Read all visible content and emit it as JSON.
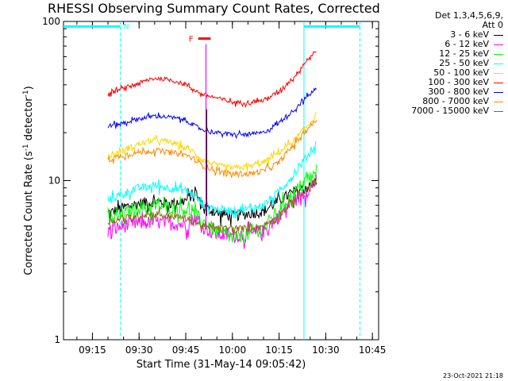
{
  "title": "RHESSI Observing Summary Count Rates, Corrected",
  "legend": {
    "header_line1": "Det 1,3,4,5,6,9,",
    "header_line2": "Att 0",
    "items": [
      {
        "label": "3 - 6 keV",
        "color": "#000000"
      },
      {
        "label": "6 - 12 keV",
        "color": "#ff00ff"
      },
      {
        "label": "12 - 25 keV",
        "color": "#00ff00"
      },
      {
        "label": "25 - 50 keV",
        "color": "#00ffff"
      },
      {
        "label": "50 - 100 keV",
        "color": "#ffd700"
      },
      {
        "label": "100 - 300 keV",
        "color": "#ff0000"
      },
      {
        "label": "300 - 800 keV",
        "color": "#0000ff"
      },
      {
        "label": "800 - 7000 keV",
        "color": "#ff8800"
      },
      {
        "label": "7000 - 15000 keV",
        "color": "#8b6914"
      }
    ]
  },
  "footer_date": "23-Oct-2021 21:18",
  "chart_data": {
    "type": "line",
    "title": "RHESSI Observing Summary Count Rates, Corrected",
    "xlabel": "Start Time (31-May-14 09:05:42)",
    "ylabel": "Corrected Count Rate (s⁻¹ detector⁻¹)",
    "ylabel_text": "Corrected Count Rate (s",
    "ylabel_sup1": "-1",
    "ylabel_mid": " detector",
    "ylabel_sup2": "-1",
    "ylabel_end": ")",
    "yscale": "log",
    "ylim": [
      1,
      100
    ],
    "yticks": [
      1,
      10,
      100
    ],
    "yticklabels": [
      "1",
      "10",
      "100"
    ],
    "xlim": [
      "09:05:42",
      "10:47:00"
    ],
    "xticks": [
      "09:15",
      "09:30",
      "09:45",
      "10:00",
      "10:15",
      "10:30",
      "10:45"
    ],
    "annotations": {
      "night_label": "N",
      "flare_label": "F",
      "night_intervals": [
        [
          "09:05:42",
          "09:24:00"
        ],
        [
          "10:23:00",
          "10:41:00"
        ]
      ],
      "night_level": 93,
      "flare_interval": [
        "09:49:00",
        "09:53:00"
      ],
      "flare_level": 78,
      "vertical_markers": [
        "09:24:00",
        "10:23:00",
        "10:41:00"
      ],
      "spike_time": "09:51:30"
    },
    "series": [
      {
        "name": "3 - 6 keV",
        "color": "#000000",
        "x": [
          "09:20",
          "09:25",
          "09:30",
          "09:35",
          "09:40",
          "09:45",
          "09:48",
          "09:50",
          "09:55",
          "10:00",
          "10:05",
          "10:10",
          "10:15",
          "10:20",
          "10:25",
          "10:27"
        ],
        "values": [
          6.2,
          6.8,
          7.2,
          7.4,
          7.2,
          7.5,
          8.5,
          7.0,
          6.2,
          6.0,
          6.2,
          6.4,
          7.5,
          8.5,
          9.2,
          10
        ],
        "noise": 0.08
      },
      {
        "name": "6 - 12 keV",
        "color": "#ff00ff",
        "x": [
          "09:20",
          "09:25",
          "09:30",
          "09:35",
          "09:40",
          "09:45",
          "09:48",
          "09:50",
          "09:55",
          "10:00",
          "10:05",
          "10:10",
          "10:15",
          "10:20",
          "10:25",
          "10:27"
        ],
        "values": [
          4.8,
          5.2,
          5.4,
          5.5,
          5.4,
          5.3,
          5.8,
          5.2,
          4.6,
          4.5,
          4.6,
          4.8,
          6.0,
          7.5,
          9.0,
          10
        ],
        "noise": 0.1
      },
      {
        "name": "12 - 25 keV",
        "color": "#00ff00",
        "x": [
          "09:20",
          "09:25",
          "09:30",
          "09:35",
          "09:40",
          "09:45",
          "09:48",
          "09:50",
          "09:55",
          "10:00",
          "10:05",
          "10:10",
          "10:15",
          "10:20",
          "10:25",
          "10:27"
        ],
        "values": [
          5.6,
          6.2,
          6.8,
          6.9,
          6.8,
          6.6,
          6.2,
          5.6,
          4.8,
          4.4,
          4.6,
          5.0,
          6.5,
          8.5,
          10.5,
          11
        ],
        "noise": 0.1
      },
      {
        "name": "25 - 50 keV",
        "color": "#00ffff",
        "x": [
          "09:20",
          "09:25",
          "09:30",
          "09:35",
          "09:40",
          "09:45",
          "09:48",
          "09:50",
          "09:55",
          "10:00",
          "10:05",
          "10:10",
          "10:15",
          "10:20",
          "10:25",
          "10:27"
        ],
        "values": [
          7.5,
          8.3,
          9.0,
          9.3,
          9.0,
          8.7,
          8.0,
          7.2,
          6.6,
          6.5,
          6.6,
          7.0,
          8.5,
          11,
          15,
          17
        ],
        "noise": 0.06
      },
      {
        "name": "50 - 100 keV",
        "color": "#ffd700",
        "x": [
          "09:20",
          "09:25",
          "09:30",
          "09:35",
          "09:40",
          "09:45",
          "09:48",
          "09:50",
          "09:55",
          "10:00",
          "10:05",
          "10:10",
          "10:15",
          "10:20",
          "10:25",
          "10:27"
        ],
        "values": [
          14,
          15.5,
          17,
          18,
          17.5,
          16,
          15,
          13.5,
          12.5,
          12,
          12.2,
          13,
          15,
          18,
          23,
          26
        ],
        "noise": 0.04
      },
      {
        "name": "100 - 300 keV",
        "color": "#ff0000",
        "x": [
          "09:20",
          "09:25",
          "09:30",
          "09:35",
          "09:40",
          "09:45",
          "09:48",
          "09:50",
          "09:55",
          "10:00",
          "10:05",
          "10:10",
          "10:15",
          "10:20",
          "10:25",
          "10:27"
        ],
        "values": [
          35,
          38,
          41,
          44,
          43,
          40,
          37,
          35,
          33,
          31,
          31,
          32,
          36,
          45,
          60,
          65
        ],
        "noise": 0.03
      },
      {
        "name": "300 - 800 keV",
        "color": "#0000ff",
        "x": [
          "09:20",
          "09:25",
          "09:30",
          "09:35",
          "09:40",
          "09:45",
          "09:48",
          "09:50",
          "09:55",
          "10:00",
          "10:05",
          "10:10",
          "10:15",
          "10:20",
          "10:25",
          "10:27"
        ],
        "values": [
          22,
          23,
          24.5,
          25.5,
          25,
          24,
          22,
          21,
          20,
          19.5,
          19.5,
          20,
          23,
          28,
          35,
          38
        ],
        "noise": 0.03
      },
      {
        "name": "800 - 7000 keV",
        "color": "#ff8800",
        "x": [
          "09:20",
          "09:25",
          "09:30",
          "09:35",
          "09:40",
          "09:45",
          "09:48",
          "09:50",
          "09:55",
          "10:00",
          "10:05",
          "10:10",
          "10:15",
          "10:20",
          "10:25",
          "10:27"
        ],
        "values": [
          13.5,
          14.5,
          15,
          15.5,
          15,
          14.5,
          13.5,
          12.5,
          11.5,
          11,
          11,
          11.5,
          13,
          17,
          22,
          24
        ],
        "noise": 0.04
      },
      {
        "name": "7000 - 15000 keV",
        "color": "#8b6914",
        "x": [
          "09:20",
          "09:25",
          "09:30",
          "09:35",
          "09:40",
          "09:45",
          "09:48",
          "09:50",
          "09:55",
          "10:00",
          "10:05",
          "10:10",
          "10:15",
          "10:20",
          "10:25",
          "10:27"
        ],
        "values": [
          5.5,
          5.8,
          6.0,
          6.2,
          6.0,
          5.8,
          5.5,
          5.2,
          5.0,
          5.0,
          5.0,
          5.2,
          6.0,
          7.5,
          9.0,
          10
        ],
        "noise": 0.05
      }
    ]
  }
}
